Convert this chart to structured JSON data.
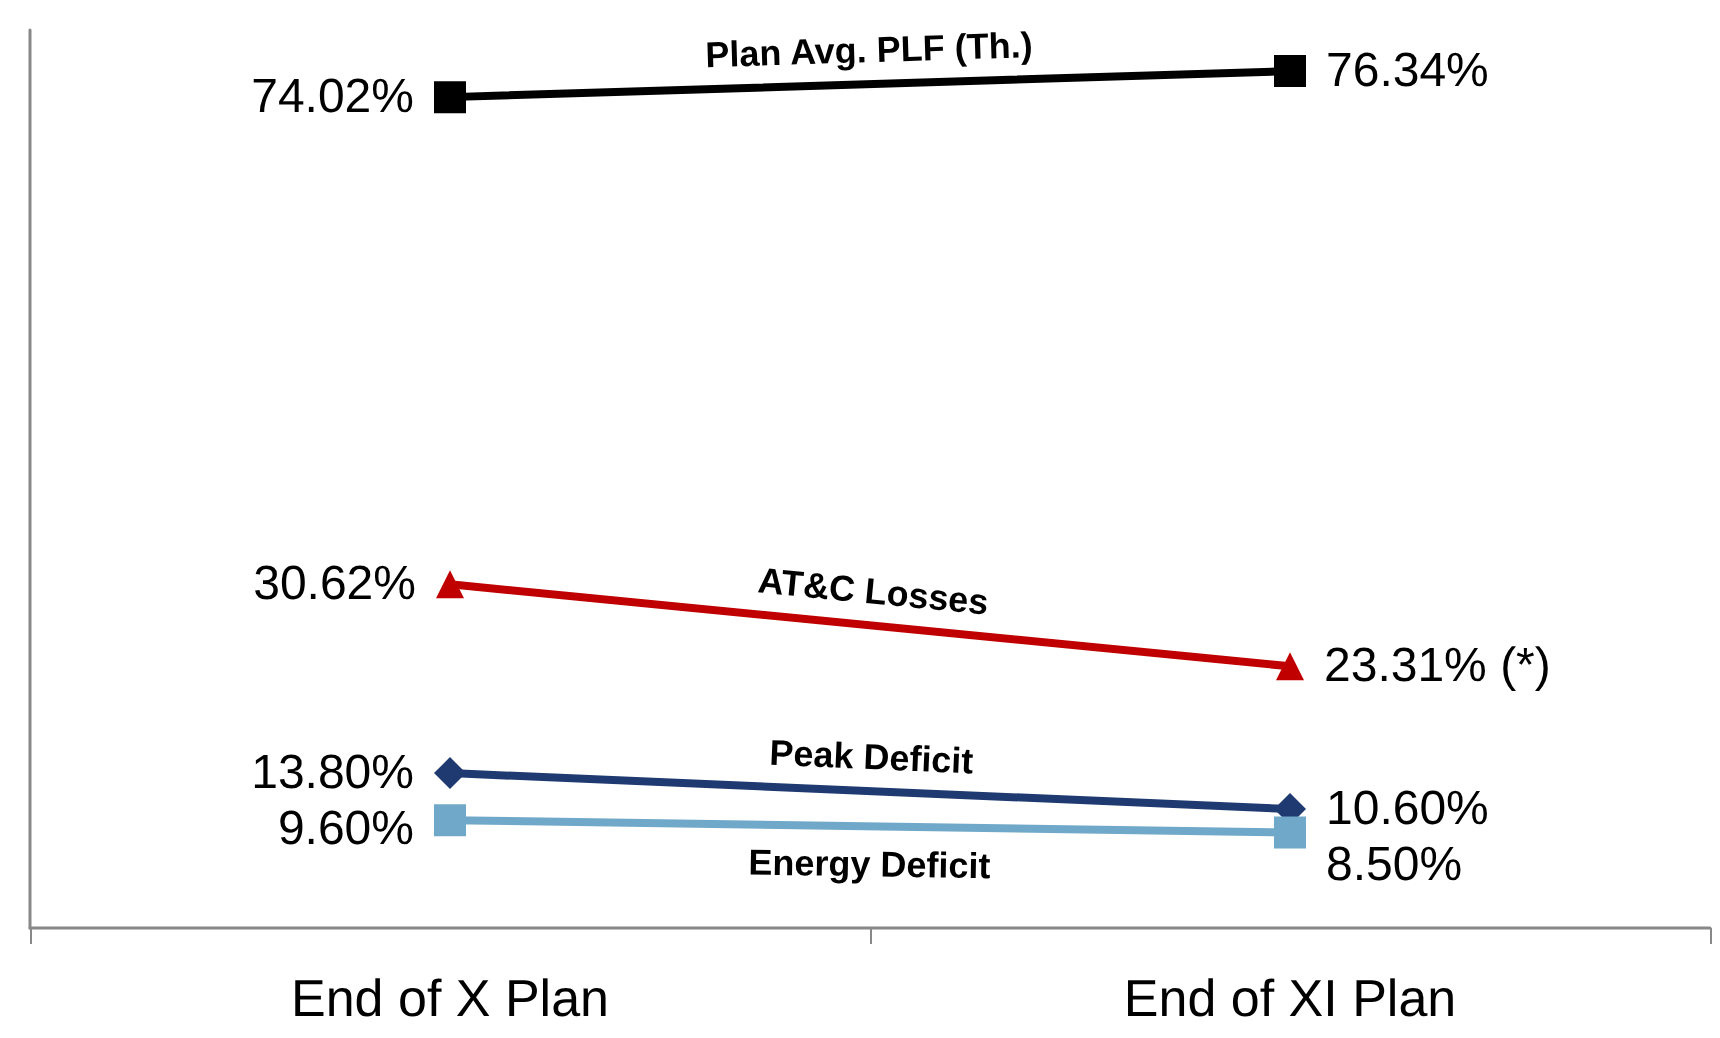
{
  "chart_data": {
    "type": "line",
    "categories": [
      "End of X Plan",
      "End of XI Plan"
    ],
    "series": [
      {
        "name": "Plan Avg. PLF (Th.)",
        "color": "#000000",
        "marker": "square",
        "values": [
          74.02,
          76.34
        ],
        "value_labels": [
          "74.02%",
          "76.34%"
        ]
      },
      {
        "name": "AT&C Losses",
        "color": "#c00000",
        "marker": "triangle",
        "values": [
          30.62,
          23.31
        ],
        "value_labels": [
          "30.62%",
          "23.31% (*)"
        ]
      },
      {
        "name": "Peak Deficit",
        "color": "#1f3a70",
        "marker": "diamond",
        "values": [
          13.8,
          10.6
        ],
        "value_labels": [
          "13.80%",
          "10.60%"
        ]
      },
      {
        "name": "Energy Deficit",
        "color": "#6fa8c8",
        "marker": "square",
        "values": [
          9.6,
          8.5
        ],
        "value_labels": [
          "9.60%",
          "8.50%"
        ]
      }
    ],
    "legend": false,
    "grid": false,
    "line_style": "solid"
  }
}
